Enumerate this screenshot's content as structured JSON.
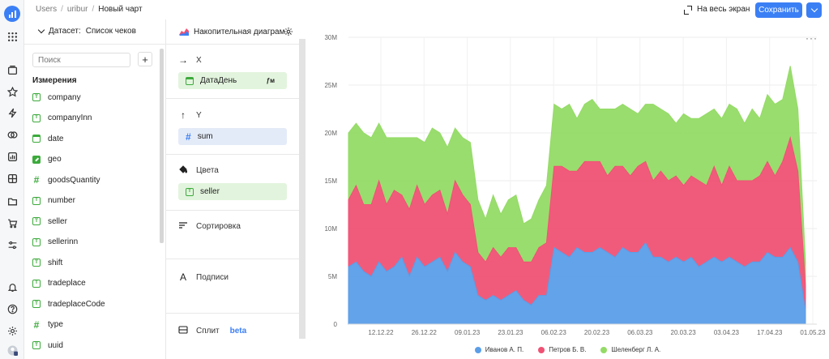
{
  "breadcrumbs": [
    {
      "label": "Users"
    },
    {
      "label": "uribur"
    },
    {
      "label": "Новый чарт"
    }
  ],
  "header": {
    "fullscreen_label": "На весь экран",
    "save_label": "Сохранить"
  },
  "dataset": {
    "title": "Датасет:",
    "name": "Список чеков",
    "search_placeholder": "Поиск",
    "add_label": "+",
    "dimensions_title": "Измерения",
    "fields": [
      {
        "name": "company",
        "type": "T"
      },
      {
        "name": "companyInn",
        "type": "T"
      },
      {
        "name": "date",
        "type": "date"
      },
      {
        "name": "geo",
        "type": "geo"
      },
      {
        "name": "goodsQuantity",
        "type": "#"
      },
      {
        "name": "number",
        "type": "T"
      },
      {
        "name": "seller",
        "type": "T"
      },
      {
        "name": "sellerinn",
        "type": "T"
      },
      {
        "name": "shift",
        "type": "T"
      },
      {
        "name": "tradeplace",
        "type": "T"
      },
      {
        "name": "tradeplaceCode",
        "type": "T"
      },
      {
        "name": "type",
        "type": "#"
      },
      {
        "name": "uuid",
        "type": "T"
      }
    ]
  },
  "visualization": {
    "type_label": "Накопительная диаграм...",
    "sections": {
      "x": {
        "label": "X",
        "field": "ДатаДень",
        "field_suffix": "ƒм"
      },
      "y": {
        "label": "Y",
        "field": "sum"
      },
      "colors": {
        "label": "Цвета",
        "field": "seller"
      },
      "sort": {
        "label": "Сортировка"
      },
      "labels": {
        "label": "Подписи"
      },
      "split": {
        "label": "Сплит",
        "badge": "beta"
      }
    }
  },
  "colors": {
    "accent": "#3b7ff5",
    "series_blue": "#5b9ee8",
    "series_red": "#f05274",
    "series_green": "#94db66"
  },
  "chart_data": {
    "type": "area",
    "stacked": true,
    "y_ticks": [
      "0",
      "5M",
      "10M",
      "15M",
      "20M",
      "25M",
      "30M"
    ],
    "ylim": [
      0,
      30000000
    ],
    "x_ticks": [
      "12.12.22",
      "26.12.22",
      "09.01.23",
      "23.01.23",
      "06.02.23",
      "20.02.23",
      "06.03.23",
      "20.03.23",
      "03.04.23",
      "17.04.23",
      "01.05.23"
    ],
    "grid": true,
    "legend_position": "bottom",
    "series": [
      {
        "name": "Иванов А. П.",
        "color": "#5b9ee8",
        "values": [
          6.0,
          6.5,
          5.5,
          5.0,
          6.5,
          5.5,
          6.0,
          7.0,
          5.0,
          7.0,
          6.0,
          6.5,
          7.0,
          5.5,
          7.5,
          6.5,
          6.0,
          3.0,
          2.5,
          3.0,
          2.5,
          3.0,
          3.5,
          2.5,
          2.0,
          3.0,
          3.0,
          8.0,
          7.5,
          7.0,
          8.0,
          7.5,
          7.5,
          8.0,
          7.5,
          7.0,
          8.0,
          7.5,
          7.5,
          8.5,
          7.0,
          7.0,
          6.5,
          7.0,
          6.5,
          7.0,
          6.0,
          6.5,
          7.0,
          6.5,
          7.0,
          6.5,
          6.0,
          6.5,
          6.5,
          7.5,
          7.0,
          7.0,
          8.0,
          6.5,
          1.5
        ]
      },
      {
        "name": "Петров Б. В.",
        "color": "#f05274",
        "values": [
          7.0,
          8.0,
          7.0,
          7.5,
          8.5,
          7.0,
          8.0,
          6.5,
          7.0,
          7.5,
          6.5,
          7.0,
          7.0,
          6.0,
          7.5,
          7.0,
          6.5,
          4.5,
          4.0,
          5.0,
          4.5,
          5.0,
          4.5,
          4.0,
          4.5,
          5.0,
          5.5,
          8.5,
          9.0,
          9.0,
          8.0,
          9.5,
          9.5,
          9.0,
          8.0,
          9.5,
          8.5,
          8.0,
          9.0,
          8.5,
          8.0,
          9.0,
          8.5,
          8.5,
          8.0,
          8.5,
          9.0,
          8.0,
          9.5,
          8.0,
          9.5,
          8.5,
          9.0,
          8.5,
          9.0,
          9.5,
          8.5,
          10.0,
          11.5,
          9.5,
          2.5
        ]
      },
      {
        "name": "Шеленберг Л. А.",
        "color": "#94db66",
        "values": [
          7.0,
          6.5,
          7.5,
          7.0,
          6.0,
          7.0,
          5.5,
          6.0,
          7.5,
          5.0,
          6.5,
          7.0,
          6.0,
          7.0,
          5.5,
          6.0,
          6.5,
          5.5,
          4.5,
          5.5,
          4.5,
          5.0,
          5.5,
          4.0,
          4.5,
          5.0,
          6.0,
          6.5,
          6.0,
          7.0,
          5.5,
          6.0,
          6.5,
          5.5,
          7.0,
          6.0,
          6.5,
          7.0,
          5.5,
          6.0,
          8.0,
          6.5,
          7.0,
          5.5,
          7.5,
          6.0,
          6.5,
          7.5,
          6.0,
          7.0,
          6.5,
          7.5,
          6.0,
          7.5,
          6.0,
          7.0,
          7.5,
          6.5,
          7.5,
          6.5,
          2.5
        ]
      }
    ]
  }
}
